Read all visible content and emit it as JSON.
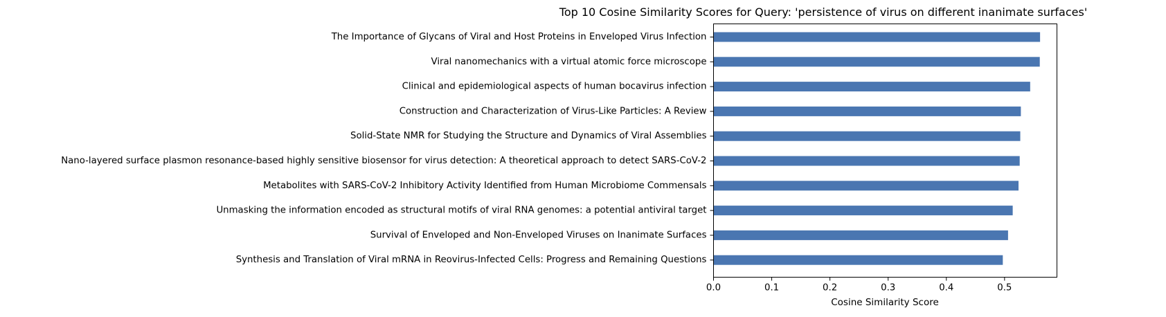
{
  "chart_data": {
    "type": "bar",
    "orientation": "horizontal",
    "title": "Top 10 Cosine Similarity Scores for Query: 'persistence of virus on different inanimate surfaces'",
    "xlabel": "Cosine Similarity Score",
    "ylabel": "",
    "xlim": [
      0,
      0.59
    ],
    "xticks": [
      0.0,
      0.1,
      0.2,
      0.3,
      0.4,
      0.5
    ],
    "xtick_labels": [
      "0.0",
      "0.1",
      "0.2",
      "0.3",
      "0.4",
      "0.5"
    ],
    "grid": false,
    "legend": "none",
    "bar_color": "#4a76b1",
    "categories": [
      "The Importance of Glycans of Viral and Host Proteins in Enveloped Virus Infection",
      "Viral nanomechanics with a virtual atomic force microscope",
      "Clinical and epidemiological aspects of human bocavirus infection",
      "Construction and Characterization of Virus-Like Particles: A Review",
      "Solid-State NMR for Studying the Structure and Dynamics of Viral Assemblies",
      "Nano-layered surface plasmon resonance-based highly sensitive biosensor for virus detection: A theoretical approach to detect SARS-CoV-2",
      "Metabolites with SARS-CoV-2 Inhibitory Activity Identified from Human Microbiome Commensals",
      "Unmasking the information encoded as structural motifs of viral RNA genomes: a potential antiviral target",
      "Survival of Enveloped and Non-Enveloped Viruses on Inanimate Surfaces",
      "Synthesis and Translation of Viral mRNA in Reovirus-Infected Cells: Progress and Remaining Questions"
    ],
    "values": [
      0.561,
      0.5605,
      0.544,
      0.528,
      0.527,
      0.526,
      0.524,
      0.514,
      0.506,
      0.497
    ]
  }
}
